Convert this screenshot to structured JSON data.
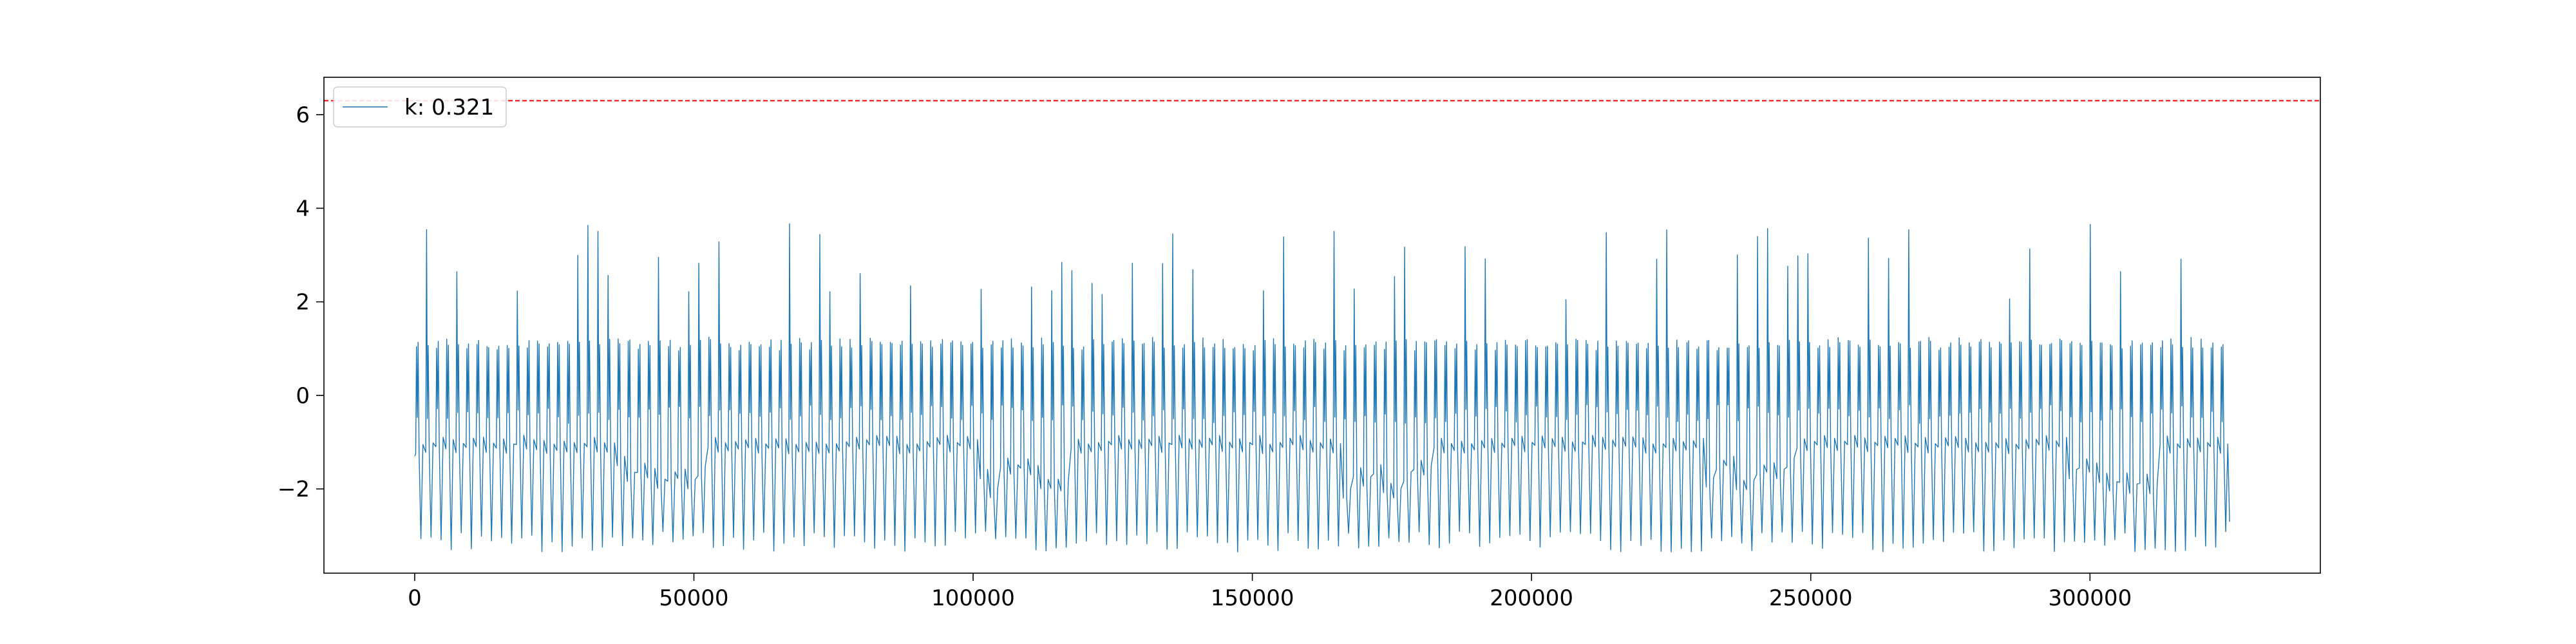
{
  "chart_data": {
    "type": "line",
    "title": "",
    "xlabel": "",
    "ylabel": "",
    "xlim": [
      -16250,
      341250
    ],
    "ylim": [
      -3.8,
      6.8
    ],
    "grid": false,
    "legend_placement": "top-left",
    "x_ticks": [
      0,
      50000,
      100000,
      150000,
      200000,
      250000,
      300000
    ],
    "x_tick_labels": [
      "0",
      "50000",
      "100000",
      "150000",
      "200000",
      "250000",
      "300000"
    ],
    "y_ticks": [
      -2,
      0,
      2,
      4,
      6
    ],
    "y_tick_labels": [
      "−2",
      "0",
      "2",
      "4",
      "6"
    ],
    "series": [
      {
        "name": "k: 0.321",
        "color": "#1f77b4",
        "x_range": [
          0,
          325000
        ],
        "range": [
          -3.4,
          3.75
        ],
        "typical_peak": 1.1,
        "typical_trough": -3.1,
        "cycle_count": 180,
        "tall_spike_max": 3.75
      }
    ],
    "hlines": [
      {
        "y": 6.3,
        "color": "#ff0000",
        "style": "dashed"
      }
    ]
  }
}
